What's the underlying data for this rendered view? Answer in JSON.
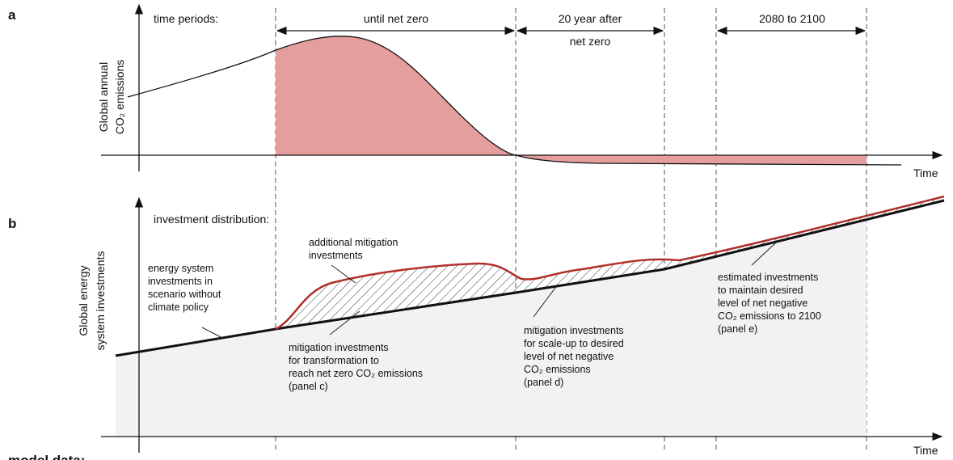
{
  "panel_labels": {
    "a": "a",
    "b": "b",
    "c": "model data:"
  },
  "panel_a": {
    "heading": "time periods:",
    "y_label": [
      "Global annual",
      "CO₂ emissions"
    ],
    "x_label": "Time",
    "periods": [
      [
        "until net zero"
      ],
      [
        "20 year after",
        "net zero"
      ],
      [
        "2080 to 2100"
      ]
    ]
  },
  "panel_b": {
    "heading": "investment distribution:",
    "y_label": [
      "Global energy",
      "system investments"
    ],
    "x_label": "Time",
    "annotations": [
      [
        "additional mitigation",
        "investments"
      ],
      [
        "energy system",
        "investments in",
        "scenario without",
        "climate policy"
      ],
      [
        "mitigation investments",
        "for transformation to",
        "reach net zero CO₂ emissions",
        "(panel c)"
      ],
      [
        "mitigation investments",
        "for scale-up to desired",
        "level of net negative",
        "CO₂ emissions",
        "(panel d)"
      ],
      [
        "estimated investments",
        "to maintain desired",
        "level of net negative",
        "CO₂ emissions to 2100",
        "(panel e)"
      ]
    ]
  }
}
